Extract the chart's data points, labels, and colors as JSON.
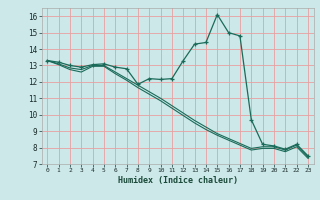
{
  "xlabel": "Humidex (Indice chaleur)",
  "bg_color": "#cce8e8",
  "grid_color_major": "#e8a0a0",
  "line_color": "#1a6b5a",
  "xlim": [
    -0.5,
    23.5
  ],
  "ylim": [
    7,
    16.5
  ],
  "xticks": [
    0,
    1,
    2,
    3,
    4,
    5,
    6,
    7,
    8,
    9,
    10,
    11,
    12,
    13,
    14,
    15,
    16,
    17,
    18,
    19,
    20,
    21,
    22,
    23
  ],
  "yticks": [
    7,
    8,
    9,
    10,
    11,
    12,
    13,
    14,
    15,
    16
  ],
  "line1_x": [
    0,
    1,
    2,
    3,
    4,
    5,
    6,
    7,
    8,
    9,
    10,
    11,
    12,
    13,
    14,
    15,
    16,
    17,
    18,
    19,
    20,
    21,
    22,
    23
  ],
  "line1_y": [
    13.3,
    13.2,
    13.0,
    12.9,
    13.05,
    13.1,
    12.9,
    12.8,
    11.85,
    12.2,
    12.15,
    12.2,
    13.3,
    14.3,
    14.4,
    16.1,
    15.0,
    14.8,
    9.7,
    8.2,
    8.1,
    7.9,
    8.2,
    7.5
  ],
  "line2_x": [
    0,
    1,
    2,
    3,
    4,
    5,
    6,
    7,
    8,
    9,
    10,
    11,
    12,
    13,
    14,
    15,
    16,
    17,
    18,
    19,
    20,
    21,
    22,
    23
  ],
  "line2_y": [
    13.3,
    13.1,
    12.85,
    12.75,
    13.0,
    13.0,
    12.6,
    12.2,
    11.8,
    11.4,
    11.0,
    10.55,
    10.1,
    9.65,
    9.25,
    8.85,
    8.55,
    8.25,
    7.95,
    8.05,
    8.05,
    7.85,
    8.15,
    7.45
  ],
  "line3_x": [
    0,
    1,
    2,
    3,
    4,
    5,
    6,
    7,
    8,
    9,
    10,
    11,
    12,
    13,
    14,
    15,
    16,
    17,
    18,
    19,
    20,
    21,
    22,
    23
  ],
  "line3_y": [
    13.3,
    13.05,
    12.75,
    12.6,
    12.95,
    12.95,
    12.5,
    12.1,
    11.65,
    11.25,
    10.85,
    10.4,
    9.95,
    9.5,
    9.1,
    8.75,
    8.45,
    8.15,
    7.85,
    7.95,
    7.95,
    7.75,
    8.05,
    7.35
  ]
}
